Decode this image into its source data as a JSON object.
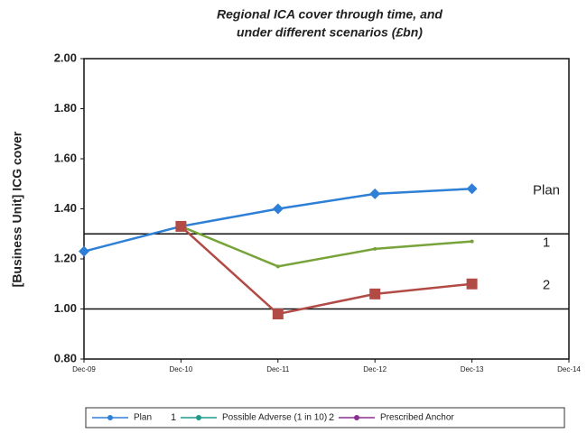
{
  "chart_data": {
    "type": "line",
    "title": [
      "Regional ICA cover through time, and",
      "under different scenarios (£bn)"
    ],
    "y_axis_label": "[Business Unit] ICG cover",
    "categories": [
      "Dec-09",
      "Dec-10",
      "Dec-11",
      "Dec-12",
      "Dec-13",
      "Dec-14"
    ],
    "series": [
      {
        "name": "Plan",
        "color": "#2e7fd6",
        "legend_color": "#2e7fd6",
        "marker": "diamond",
        "values": [
          1.23,
          1.33,
          1.4,
          1.46,
          1.48,
          null
        ]
      },
      {
        "label": "1",
        "name": "Possible Adverse (1 in 10)",
        "color": "#77a33a",
        "legend_color": "#1f9a8a",
        "marker": "dot",
        "values": [
          null,
          1.33,
          1.17,
          1.24,
          1.27,
          null
        ]
      },
      {
        "label": "2",
        "name": "Prescribed Anchor",
        "color": "#b24a45",
        "legend_color": "#8a2e8f",
        "marker": "square",
        "values": [
          null,
          1.33,
          0.98,
          1.06,
          1.1,
          null
        ]
      }
    ],
    "label_colors": [
      "#2e7fd6",
      "#77a33a",
      "#a03a9e"
    ],
    "ylim": [
      0.8,
      2.0
    ],
    "yticks": [
      {
        "value": 0.8,
        "label": "0.80"
      },
      {
        "value": 1.0,
        "label": "1.00"
      },
      {
        "value": 1.2,
        "label": "1.20"
      },
      {
        "value": 1.4,
        "label": "1.40"
      },
      {
        "value": 1.6,
        "label": "1.60"
      },
      {
        "value": 1.8,
        "label": "1.80"
      },
      {
        "value": 2.0,
        "label": "2.00"
      }
    ],
    "reference_lines": [
      1.3,
      1.0
    ],
    "grid": false
  }
}
